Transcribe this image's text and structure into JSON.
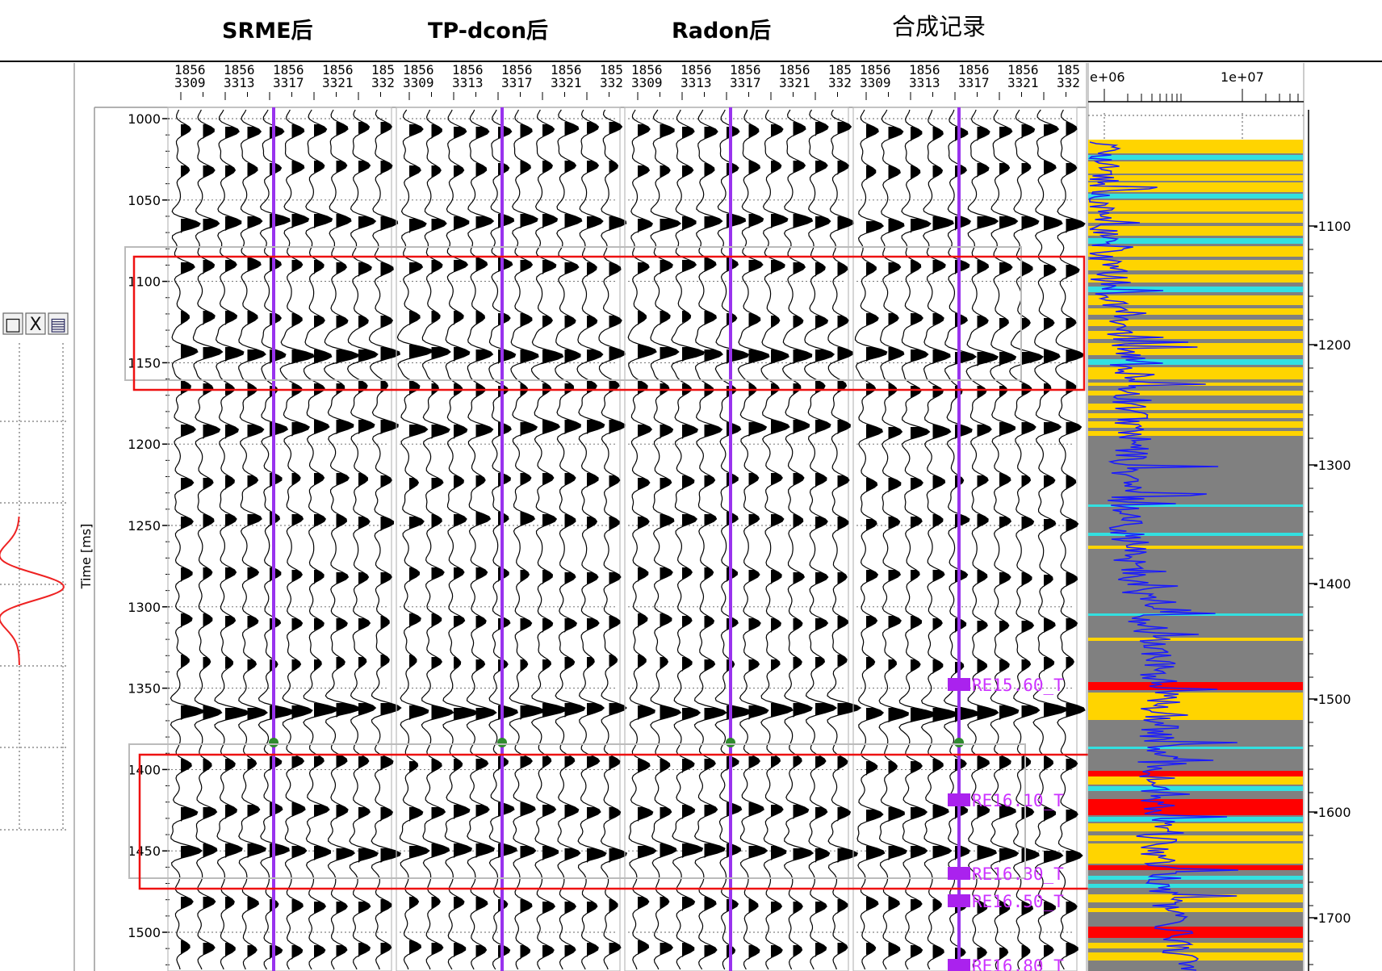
{
  "titles": [
    "SRME后",
    "TP-dcon后",
    "Radon后",
    "合成记录"
  ],
  "time_axis": {
    "label": "Time [ms]",
    "ticks": [
      "1000",
      "1050",
      "1100",
      "1150",
      "1200",
      "1250",
      "1300",
      "1350",
      "1400",
      "1450",
      "1500"
    ]
  },
  "trace_headers": {
    "line_top": [
      "1856",
      "1856",
      "1856",
      "1856",
      "185"
    ],
    "line_bottom": [
      "3309",
      "3313",
      "3317",
      "3321",
      "332"
    ]
  },
  "log_panel": {
    "scale_labels": [
      "e+06",
      "1e+07"
    ],
    "depth_ticks": [
      "1100",
      "1200",
      "1300",
      "1400",
      "1500",
      "1600",
      "1700"
    ]
  },
  "horizon_markers": [
    "RE15.60_T",
    "RE16.10_T",
    "RE16.30_T",
    "RE16.50_T",
    "RE16.80_T"
  ],
  "window_buttons": [
    "□",
    "X",
    "▤"
  ],
  "colors": {
    "well_line": "#9933ee",
    "highlight_box": "#ee1111",
    "log_curve": "#1a1aff",
    "lith_gray": "#808080",
    "lith_yellow": "#ffd400",
    "lith_red": "#ff0000",
    "lith_cyan": "#33e0e0",
    "wavelet": "#ee2222",
    "marker": "#aa22ee"
  }
}
